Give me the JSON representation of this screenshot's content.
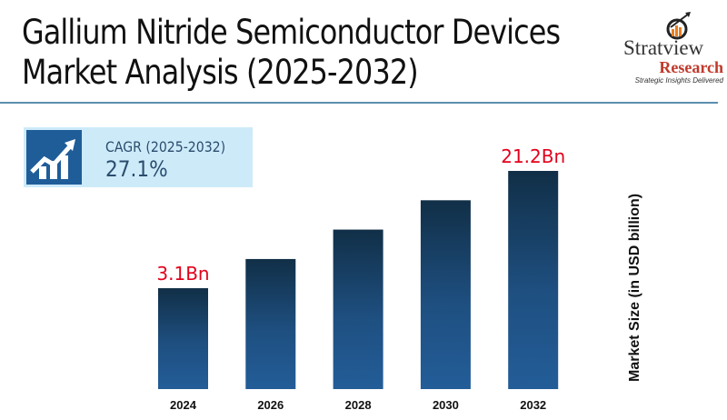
{
  "title_lines": [
    "Gallium Nitride Semiconductor Devices",
    "Market Analysis (2025-2032)"
  ],
  "logo": {
    "name": "Stratview",
    "sub": "Research",
    "tagline": "Strategic Insights Delivered"
  },
  "cagr": {
    "label": "CAGR (2025-2032)",
    "value": "27.1%",
    "icon": "growth-chart-icon"
  },
  "colors": {
    "bar_top": "#112f47",
    "bar_bottom": "#235d98",
    "data_label": "#e3001b",
    "cagr_bg": "#cdeaf9"
  },
  "chart_data": {
    "type": "bar",
    "categories": [
      "2024",
      "2026",
      "2028",
      "2030",
      "2032"
    ],
    "values": [
      3.1,
      5.0,
      8.1,
      13.1,
      21.2
    ],
    "data_labels": [
      "3.1Bn",
      "",
      "",
      "",
      "21.2Bn"
    ],
    "ylabel": "Market Size (in USD billion)",
    "xlabel": "",
    "grid": false
  }
}
